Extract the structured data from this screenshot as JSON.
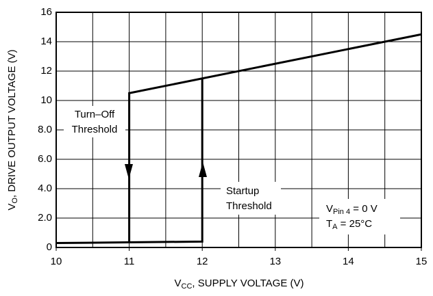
{
  "chart_data": {
    "type": "line",
    "xlabel": {
      "main": "V",
      "sub": "CC",
      "rest": ", SUPPLY VOLTAGE (V)"
    },
    "ylabel": {
      "main": "V",
      "sub": "O",
      "rest": ", DRIVE OUTPUT VOLTAGE (V)"
    },
    "xlim": [
      10,
      15
    ],
    "ylim": [
      0,
      16
    ],
    "xticks": [
      10,
      11,
      12,
      13,
      14,
      15
    ],
    "x_grid": [
      10.5,
      11,
      11.5,
      12,
      12.5,
      13,
      13.5,
      14,
      14.5
    ],
    "yticks": [
      0,
      {
        "value": 2,
        "label": "2.0"
      },
      {
        "value": 4,
        "label": "4.0"
      },
      {
        "value": 6,
        "label": "6.0"
      },
      {
        "value": 8,
        "label": "8.0"
      },
      10,
      12,
      14,
      16
    ],
    "grid": true,
    "series": [
      {
        "color": "#000000",
        "x": [
          10,
          12,
          12
        ],
        "values": [
          0.3,
          0.4,
          11.5
        ]
      },
      {
        "color": "#000000",
        "x": [
          15,
          11,
          11
        ],
        "values": [
          14.5,
          10.5,
          0.35
        ]
      }
    ],
    "annotations": {
      "turn_off": [
        "Turn–Off",
        "Threshold"
      ],
      "startup": [
        "Startup",
        "Threshold"
      ],
      "vpin": {
        "main": "V",
        "sub": "Pin 4",
        "rest": " = 0 V"
      },
      "ta": {
        "main": "T",
        "sub": "A",
        "rest": " = 25°C"
      }
    }
  }
}
